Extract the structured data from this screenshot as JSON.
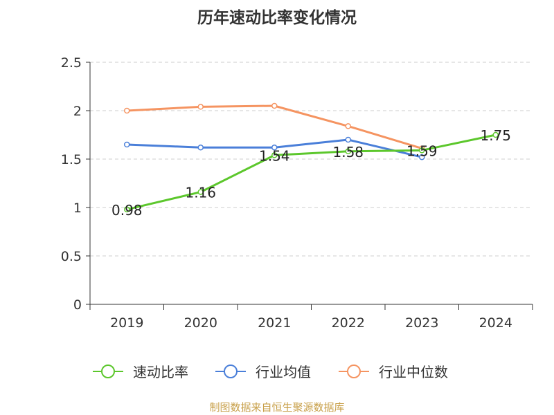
{
  "title": "历年速动比率变化情况",
  "source": "制图数据来自恒生聚源数据库",
  "chart_data": {
    "type": "line",
    "title": "历年速动比率变化情况",
    "categories": [
      "2019",
      "2020",
      "2021",
      "2022",
      "2023",
      "2024"
    ],
    "ylim": [
      0,
      2.5
    ],
    "yticks": [
      "0",
      "0.5",
      "1",
      "1.5",
      "2",
      "2.5"
    ],
    "grid": true,
    "legend_position": "bottom",
    "series": [
      {
        "name": "速动比率",
        "color": "#5cc72c",
        "values": [
          0.98,
          1.16,
          1.54,
          1.58,
          1.59,
          1.75
        ],
        "labels": [
          "0.98",
          "1.16",
          "1.54",
          "1.58",
          "1.59",
          "1.75"
        ]
      },
      {
        "name": "行业均值",
        "color": "#4a7fd9",
        "values": [
          1.65,
          1.62,
          1.62,
          1.7,
          1.52,
          null
        ]
      },
      {
        "name": "行业中位数",
        "color": "#f59461",
        "values": [
          2.0,
          2.04,
          2.05,
          1.84,
          1.61,
          null
        ]
      }
    ]
  }
}
